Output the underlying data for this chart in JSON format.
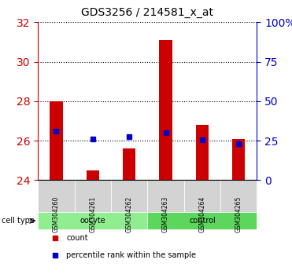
{
  "title": "GDS3256 / 214581_x_at",
  "samples": [
    "GSM304260",
    "GSM304261",
    "GSM304262",
    "GSM304263",
    "GSM304264",
    "GSM304265"
  ],
  "groups": [
    "oocyte",
    "oocyte",
    "oocyte",
    "control",
    "control",
    "control"
  ],
  "count_bottom": [
    24,
    24,
    24,
    24,
    24,
    24
  ],
  "count_top": [
    28.0,
    24.5,
    25.6,
    31.1,
    26.8,
    26.1
  ],
  "percentile": [
    26.5,
    26.1,
    26.2,
    26.4,
    26.05,
    25.85
  ],
  "ylim_left": [
    24,
    32
  ],
  "ylim_right": [
    0,
    100
  ],
  "yticks_left": [
    24,
    26,
    28,
    30,
    32
  ],
  "yticks_right": [
    0,
    25,
    50,
    75,
    100
  ],
  "ytick_labels_right": [
    "0",
    "25",
    "50",
    "75",
    "100%"
  ],
  "bar_color": "#cc0000",
  "dot_color": "#0000cc",
  "group_colors": {
    "oocyte": "#90ee90",
    "control": "#00cc00"
  },
  "group_label_color": "black",
  "cell_type_label": "cell type",
  "legend_count": "count",
  "legend_percentile": "percentile rank within the sample",
  "grid_color": "black",
  "left_tick_color": "#cc0000",
  "right_tick_color": "#0000cc",
  "bar_width": 0.35
}
